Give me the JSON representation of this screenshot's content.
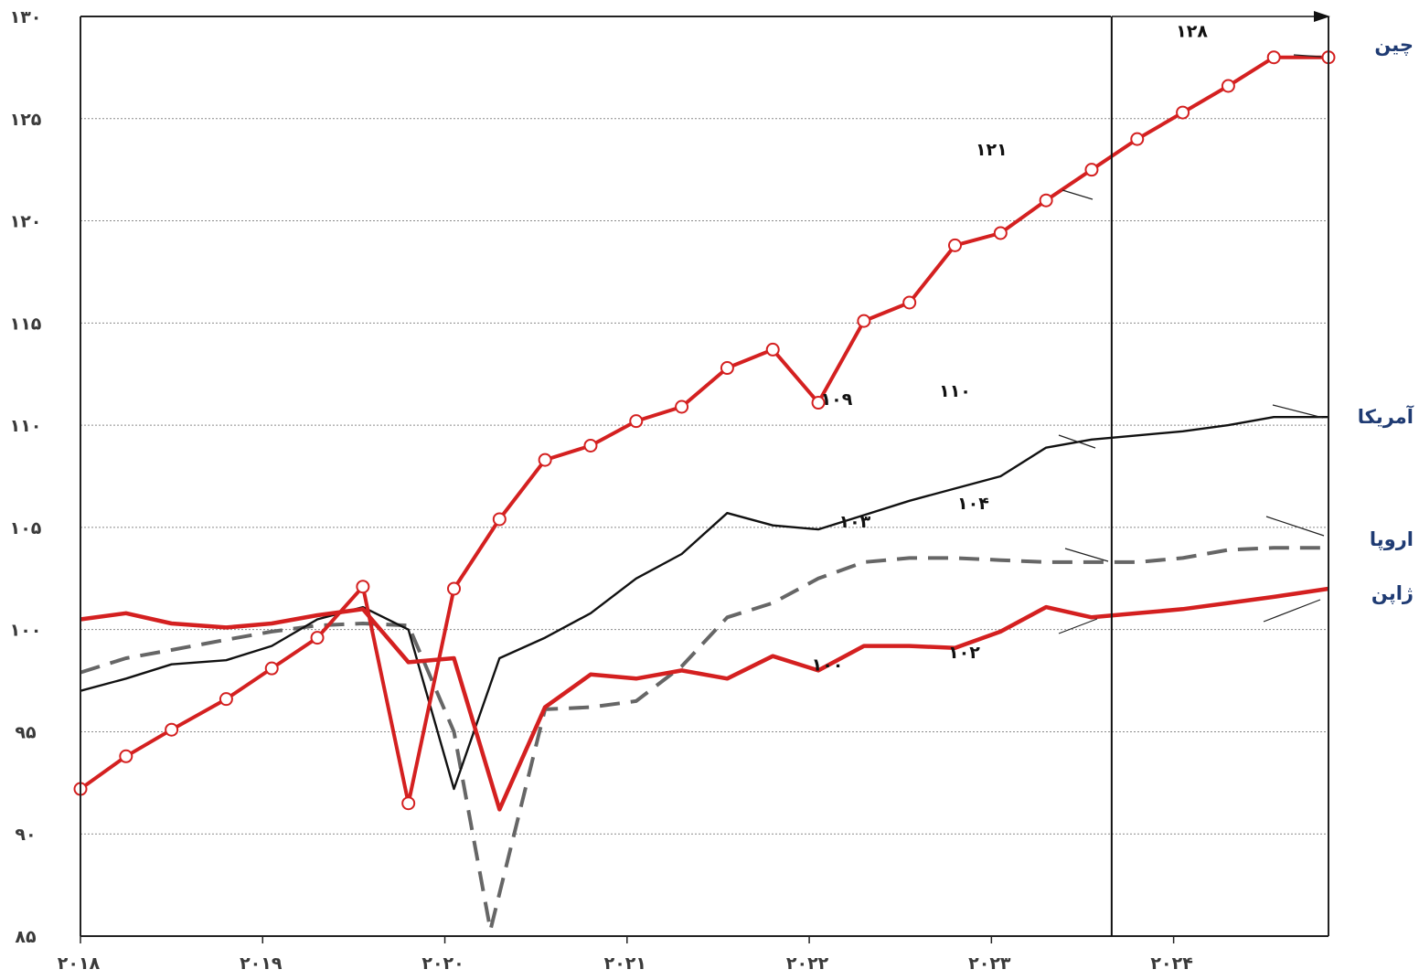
{
  "chart_data": {
    "type": "line",
    "title": "",
    "xlabel": "",
    "ylabel": "",
    "ylim": [
      85,
      130
    ],
    "xlim": [
      2018,
      2024.85
    ],
    "yticks": [
      85,
      90,
      95,
      100,
      105,
      110,
      115,
      120,
      125,
      130
    ],
    "ytick_labels": [
      "۸۵",
      "۹۰",
      "۹۵",
      "۱۰۰",
      "۱۰۵",
      "۱۱۰",
      "۱۱۵",
      "۱۲۰",
      "۱۲۵",
      "۱۳۰"
    ],
    "xticks": [
      2018,
      2019,
      2020,
      2021,
      2022,
      2023,
      2024
    ],
    "xtick_labels": [
      "۲۰۱۸",
      "۲۰۱۹",
      "۲۰۲۰",
      "۲۰۲۱",
      "۲۰۲۲",
      "۲۰۲۳",
      "۲۰۲۴"
    ],
    "grid": true,
    "forecast_start": 2023.66,
    "series": [
      {
        "name": "چین",
        "color": "#d42020",
        "style": "solid-markers",
        "x": [
          2018,
          2018.25,
          2018.5,
          2018.8,
          2019.05,
          2019.3,
          2019.55,
          2019.8,
          2020.05,
          2020.3,
          2020.55,
          2020.8,
          2021.05,
          2021.3,
          2021.55,
          2021.8,
          2022.05,
          2022.3,
          2022.55,
          2022.8,
          2023.05,
          2023.3,
          2023.55,
          2023.8,
          2024.05,
          2024.3,
          2024.55,
          2024.85
        ],
        "values": [
          92.2,
          93.8,
          95.1,
          96.6,
          98.1,
          99.6,
          102.1,
          91.5,
          102.0,
          105.4,
          108.3,
          109.0,
          110.2,
          110.9,
          112.8,
          113.7,
          111.1,
          115.1,
          116.0,
          118.8,
          119.4,
          121.0,
          122.5,
          124.0,
          125.3,
          126.6,
          128.0,
          128.0
        ],
        "markers": [
          true,
          true,
          true,
          true,
          true,
          true,
          true,
          true,
          true,
          true,
          true,
          true,
          true,
          true,
          true,
          true,
          true,
          true,
          true,
          true,
          true,
          true,
          true,
          true,
          true,
          true,
          true,
          true
        ]
      },
      {
        "name": "آمریکا",
        "color": "#111111",
        "style": "solid-thin",
        "x": [
          2018,
          2018.25,
          2018.5,
          2018.8,
          2019.05,
          2019.3,
          2019.55,
          2019.8,
          2020.05,
          2020.3,
          2020.55,
          2020.8,
          2021.05,
          2021.3,
          2021.55,
          2021.8,
          2022.05,
          2022.3,
          2022.55,
          2022.8,
          2023.05,
          2023.3,
          2023.55,
          2023.8,
          2024.05,
          2024.3,
          2024.55,
          2024.85
        ],
        "values": [
          97.0,
          97.6,
          98.3,
          98.5,
          99.2,
          100.5,
          101.1,
          100.0,
          92.2,
          98.6,
          99.6,
          100.8,
          102.5,
          103.7,
          105.7,
          105.1,
          104.9,
          105.6,
          106.3,
          106.9,
          107.5,
          108.9,
          109.3,
          109.5,
          109.7,
          110.0,
          110.4,
          110.4
        ],
        "markers": []
      },
      {
        "name": "اروپا",
        "color": "#666666",
        "style": "dashed",
        "x": [
          2018,
          2018.25,
          2018.5,
          2018.8,
          2019.05,
          2019.3,
          2019.55,
          2019.8,
          2020.05,
          2020.25,
          2020.55,
          2020.8,
          2021.05,
          2021.3,
          2021.55,
          2021.8,
          2022.05,
          2022.3,
          2022.55,
          2022.8,
          2023.05,
          2023.3,
          2023.55,
          2023.8,
          2024.05,
          2024.3,
          2024.55,
          2024.85
        ],
        "values": [
          97.9,
          98.6,
          99.0,
          99.5,
          99.9,
          100.2,
          100.3,
          100.2,
          95.0,
          85.3,
          96.1,
          96.2,
          96.5,
          98.2,
          100.6,
          101.3,
          102.5,
          103.3,
          103.5,
          103.5,
          103.4,
          103.3,
          103.3,
          103.3,
          103.5,
          103.9,
          104.0,
          104.0
        ],
        "markers": []
      },
      {
        "name": "ژاپن",
        "color": "#d42020",
        "style": "solid-thick",
        "x": [
          2018,
          2018.25,
          2018.5,
          2018.8,
          2019.05,
          2019.3,
          2019.55,
          2019.8,
          2020.05,
          2020.3,
          2020.55,
          2020.8,
          2021.05,
          2021.3,
          2021.55,
          2021.8,
          2022.05,
          2022.3,
          2022.55,
          2022.8,
          2023.05,
          2023.3,
          2023.55,
          2023.8,
          2024.05,
          2024.3,
          2024.55,
          2024.85
        ],
        "values": [
          100.5,
          100.8,
          100.3,
          100.1,
          100.3,
          100.7,
          101.0,
          98.4,
          98.6,
          91.2,
          96.2,
          97.8,
          97.6,
          98.0,
          97.6,
          98.7,
          98.0,
          99.2,
          99.2,
          99.1,
          99.9,
          101.1,
          100.6,
          100.8,
          101.0,
          101.3,
          101.6,
          102.0
        ],
        "markers": []
      }
    ],
    "value_labels": [
      {
        "text": "۱۲۸",
        "x": 2024.1,
        "y": 129.0
      },
      {
        "text": "۱۲۱",
        "x": 2023.0,
        "y": 123.2
      },
      {
        "text": "۱۰۹",
        "x": 2022.15,
        "y": 111.0
      },
      {
        "text": "۱۱۰",
        "x": 2022.8,
        "y": 111.4
      },
      {
        "text": "۱۰۳",
        "x": 2022.25,
        "y": 105.0
      },
      {
        "text": "۱۰۴",
        "x": 2022.9,
        "y": 105.9
      },
      {
        "text": "۱۰۰",
        "x": 2022.1,
        "y": 98.0
      },
      {
        "text": "۱۰۲",
        "x": 2022.85,
        "y": 98.6
      }
    ],
    "legend_placement": "right"
  }
}
